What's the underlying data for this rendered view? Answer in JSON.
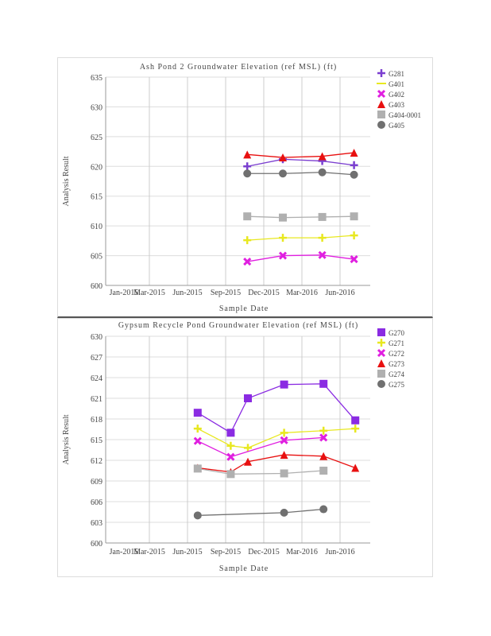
{
  "chart_data": [
    {
      "type": "line",
      "title": "Ash Pond 2 Groundwater Elevation (ref MSL) (ft)",
      "xlabel": "Sample Date",
      "ylabel": "Analysis Result",
      "x_unit": "months since Jan-2015",
      "x_ticks": [
        {
          "label": "Jan-2015",
          "m": 0
        },
        {
          "label": "Mar-2015",
          "m": 2
        },
        {
          "label": "Jun-2015",
          "m": 5
        },
        {
          "label": "Sep-2015",
          "m": 8
        },
        {
          "label": "Dec-2015",
          "m": 11
        },
        {
          "label": "Mar-2016",
          "m": 14
        },
        {
          "label": "Jun-2016",
          "m": 17
        }
      ],
      "ylim": [
        600,
        635
      ],
      "y_ticks": [
        600,
        605,
        610,
        615,
        620,
        625,
        630,
        635
      ],
      "grid": true,
      "legend": "top-right",
      "series": [
        {
          "name": "G281",
          "marker": "plus",
          "color": "#7b3fd0",
          "x": [
            9.7,
            12.5,
            15.6,
            18.1
          ],
          "values": [
            620.0,
            621.2,
            620.9,
            620.2
          ]
        },
        {
          "name": "G401",
          "marker": "line",
          "color": "#e8e820",
          "x": [
            9.7,
            12.5,
            15.6,
            18.1
          ],
          "values": [
            607.6,
            608.0,
            608.0,
            608.4
          ]
        },
        {
          "name": "G402",
          "marker": "x",
          "color": "#e020e0",
          "x": [
            9.7,
            12.5,
            15.6,
            18.1
          ],
          "values": [
            604.0,
            605.0,
            605.1,
            604.4
          ]
        },
        {
          "name": "G403",
          "marker": "triangle",
          "color": "#e81010",
          "x": [
            9.7,
            12.5,
            15.6,
            18.1
          ],
          "values": [
            622.0,
            621.5,
            621.7,
            622.3
          ]
        },
        {
          "name": "G404-0001",
          "marker": "square",
          "color": "#b0b0b0",
          "x": [
            9.7,
            12.5,
            15.6,
            18.1
          ],
          "values": [
            611.6,
            611.4,
            611.5,
            611.6
          ]
        },
        {
          "name": "G405",
          "marker": "circle",
          "color": "#707070",
          "x": [
            9.7,
            12.5,
            15.6,
            18.1
          ],
          "values": [
            618.8,
            618.8,
            619.0,
            618.6
          ]
        }
      ]
    },
    {
      "type": "line",
      "title": "Gypsum Recycle Pond Groundwater Elevation (ref MSL) (ft)",
      "xlabel": "Sample Date",
      "ylabel": "Analysis Result",
      "x_unit": "months since Jan-2015",
      "x_ticks": [
        {
          "label": "Jan-2015",
          "m": 0
        },
        {
          "label": "Mar-2015",
          "m": 2
        },
        {
          "label": "Jun-2015",
          "m": 5
        },
        {
          "label": "Sep-2015",
          "m": 8
        },
        {
          "label": "Dec-2015",
          "m": 11
        },
        {
          "label": "Mar-2016",
          "m": 14
        },
        {
          "label": "Jun-2016",
          "m": 17
        }
      ],
      "ylim": [
        600,
        630
      ],
      "y_ticks": [
        600,
        603,
        606,
        609,
        612,
        615,
        618,
        621,
        624,
        627,
        630
      ],
      "grid": true,
      "legend": "top-right",
      "series": [
        {
          "name": "G270",
          "marker": "square",
          "color": "#8a2be2",
          "x": [
            5.8,
            8.4,
            9.75,
            12.6,
            15.7,
            18.2
          ],
          "values": [
            618.9,
            616.0,
            621.0,
            623.0,
            623.1,
            617.8
          ]
        },
        {
          "name": "G271",
          "marker": "plus",
          "color": "#e8e820",
          "x": [
            5.8,
            8.4,
            9.75,
            12.6,
            15.7,
            18.2
          ],
          "values": [
            616.6,
            614.1,
            613.8,
            616.0,
            616.3,
            616.6
          ]
        },
        {
          "name": "G272",
          "marker": "x",
          "color": "#e020e0",
          "x": [
            5.8,
            8.4,
            12.6,
            15.7
          ],
          "values": [
            614.8,
            612.5,
            614.9,
            615.3
          ]
        },
        {
          "name": "G273",
          "marker": "triangle",
          "color": "#e81010",
          "x": [
            5.8,
            8.4,
            9.75,
            12.6,
            15.7,
            18.2
          ],
          "values": [
            610.9,
            610.3,
            611.8,
            612.8,
            612.6,
            610.9
          ]
        },
        {
          "name": "G274",
          "marker": "square",
          "color": "#b0b0b0",
          "x": [
            5.8,
            8.4,
            12.6,
            15.7
          ],
          "values": [
            610.8,
            610.0,
            610.1,
            610.5
          ]
        },
        {
          "name": "G275",
          "marker": "circle",
          "color": "#707070",
          "x": [
            5.8,
            12.6,
            15.7
          ],
          "values": [
            604.0,
            604.4,
            604.9
          ]
        }
      ]
    }
  ]
}
